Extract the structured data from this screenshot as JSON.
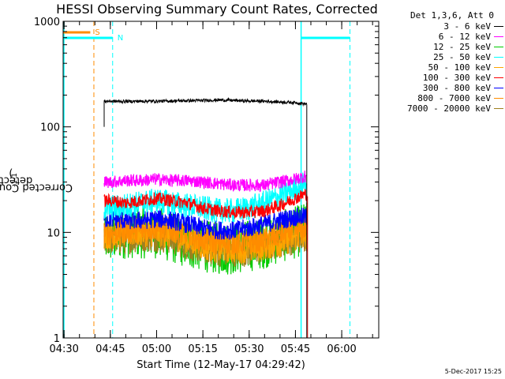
{
  "chart_data": {
    "type": "line",
    "title": "HESSI Observing Summary Count Rates, Corrected",
    "xlabel": "Start Time (12-May-17 04:29:42)",
    "ylabel_main": "Corrected Count Rate (s",
    "ylabel_sup1": "-1",
    "ylabel_mid": " detector",
    "ylabel_sup2": "-1",
    "ylabel_end": ")",
    "y_scale": "log",
    "ylim": [
      1,
      1000
    ],
    "xlim": [
      "04:29:42",
      "06:12:00"
    ],
    "x_ticks": [
      "04:30",
      "04:45",
      "05:00",
      "05:15",
      "05:30",
      "05:45",
      "06:00"
    ],
    "y_ticks": [
      "1",
      "10",
      "100",
      "1000"
    ],
    "legend_title": "Det 1,3,6, Att 0",
    "legend_placement": "right",
    "markers": {
      "s_label": "S",
      "n_label": "N",
      "saa_start": "04:39:40",
      "night_start": "04:45:45",
      "night_end": "05:46:50",
      "data_end": "05:48:40",
      "night2_start": "06:02:40"
    },
    "series": [
      {
        "name": "3 - 6 keV",
        "color": "#000000",
        "x": [
          "04:43:00",
          "04:45",
          "04:50",
          "04:55",
          "05:00",
          "05:05",
          "05:10",
          "05:15",
          "05:20",
          "05:25",
          "05:30",
          "05:35",
          "05:40",
          "05:45",
          "05:48"
        ],
        "values": [
          175,
          175,
          174,
          175,
          175,
          176,
          177,
          178,
          180,
          178,
          176,
          175,
          172,
          170,
          165
        ]
      },
      {
        "name": "6 - 12 keV",
        "color": "#ff00ff",
        "x": [
          "04:43:00",
          "04:45",
          "04:50",
          "04:55",
          "05:00",
          "05:05",
          "05:10",
          "05:15",
          "05:20",
          "05:25",
          "05:30",
          "05:35",
          "05:40",
          "05:45",
          "05:48"
        ],
        "values": [
          30,
          30,
          31,
          31,
          32,
          31,
          31,
          30,
          29,
          28,
          28,
          28,
          30,
          32,
          34
        ]
      },
      {
        "name": "12 - 25 keV",
        "color": "#00cc00",
        "x": [
          "04:43:00",
          "04:45",
          "04:50",
          "04:55",
          "05:00",
          "05:05",
          "05:10",
          "05:15",
          "05:20",
          "05:25",
          "05:30",
          "05:35",
          "05:40",
          "05:45",
          "05:48"
        ],
        "values": [
          9,
          9,
          10,
          10,
          10,
          9,
          8,
          7.5,
          7,
          7,
          7.5,
          8,
          9,
          10,
          11
        ]
      },
      {
        "name": "25 - 50 keV",
        "color": "#00ffff",
        "x": [
          "04:43:00",
          "04:45",
          "04:50",
          "04:55",
          "05:00",
          "05:05",
          "05:10",
          "05:15",
          "05:20",
          "05:25",
          "05:30",
          "05:35",
          "05:40",
          "05:45",
          "05:48"
        ],
        "values": [
          17,
          17,
          18,
          19,
          20,
          19,
          18,
          17,
          16,
          16,
          17,
          19,
          22,
          26,
          29
        ]
      },
      {
        "name": "50 - 100 keV",
        "color": "#ffa500",
        "x": [
          "04:43:00",
          "04:45",
          "04:50",
          "04:55",
          "05:00",
          "05:05",
          "05:10",
          "05:15",
          "05:20",
          "05:25",
          "05:30",
          "05:35",
          "05:40",
          "05:45",
          "05:48"
        ],
        "values": [
          9.5,
          9.5,
          10,
          10,
          10,
          9.5,
          8.5,
          7.5,
          7,
          7,
          7,
          7.5,
          8,
          9,
          9.5
        ]
      },
      {
        "name": "100 - 300 keV",
        "color": "#ff0000",
        "x": [
          "04:43:00",
          "04:45",
          "04:50",
          "04:55",
          "05:00",
          "05:05",
          "05:10",
          "05:15",
          "05:20",
          "05:25",
          "05:30",
          "05:35",
          "05:40",
          "05:45",
          "05:48"
        ],
        "values": [
          20,
          20,
          19,
          20,
          21,
          20,
          19,
          17,
          16,
          15.5,
          15.5,
          16,
          18,
          21,
          23
        ]
      },
      {
        "name": "300 - 800 keV",
        "color": "#0000ff",
        "x": [
          "04:43:00",
          "04:45",
          "04:50",
          "04:55",
          "05:00",
          "05:05",
          "05:10",
          "05:15",
          "05:20",
          "05:25",
          "05:30",
          "05:35",
          "05:40",
          "05:45",
          "05:48"
        ],
        "values": [
          13.5,
          13.5,
          13,
          13,
          13.5,
          13,
          12,
          11,
          10.5,
          10.5,
          11,
          12,
          13,
          14,
          14
        ]
      },
      {
        "name": "800 - 7000 keV",
        "color": "#ff8c00",
        "x": [
          "04:43:00",
          "04:45",
          "04:50",
          "04:55",
          "05:00",
          "05:05",
          "05:10",
          "05:15",
          "05:20",
          "05:25",
          "05:30",
          "05:35",
          "05:40",
          "05:45",
          "05:48"
        ],
        "values": [
          10,
          10,
          10.5,
          10.5,
          11,
          10.5,
          9.5,
          8.5,
          8,
          8,
          8,
          8.5,
          9.5,
          10.5,
          11
        ]
      },
      {
        "name": "7000 - 20000 keV",
        "color": "#a08020",
        "x": [
          "04:43:00",
          "04:45",
          "04:50",
          "04:55",
          "05:00",
          "05:05",
          "05:10",
          "05:15",
          "05:20",
          "05:25",
          "05:30",
          "05:35",
          "05:40",
          "05:45",
          "05:48"
        ],
        "values": [
          8.5,
          8.5,
          8.5,
          9,
          9,
          8.5,
          7.5,
          7,
          6.5,
          6.5,
          6.5,
          7,
          8,
          8.5,
          9
        ]
      }
    ],
    "grid": false
  },
  "footer": {
    "date_stamp": "5-Dec-2017 15:25"
  }
}
